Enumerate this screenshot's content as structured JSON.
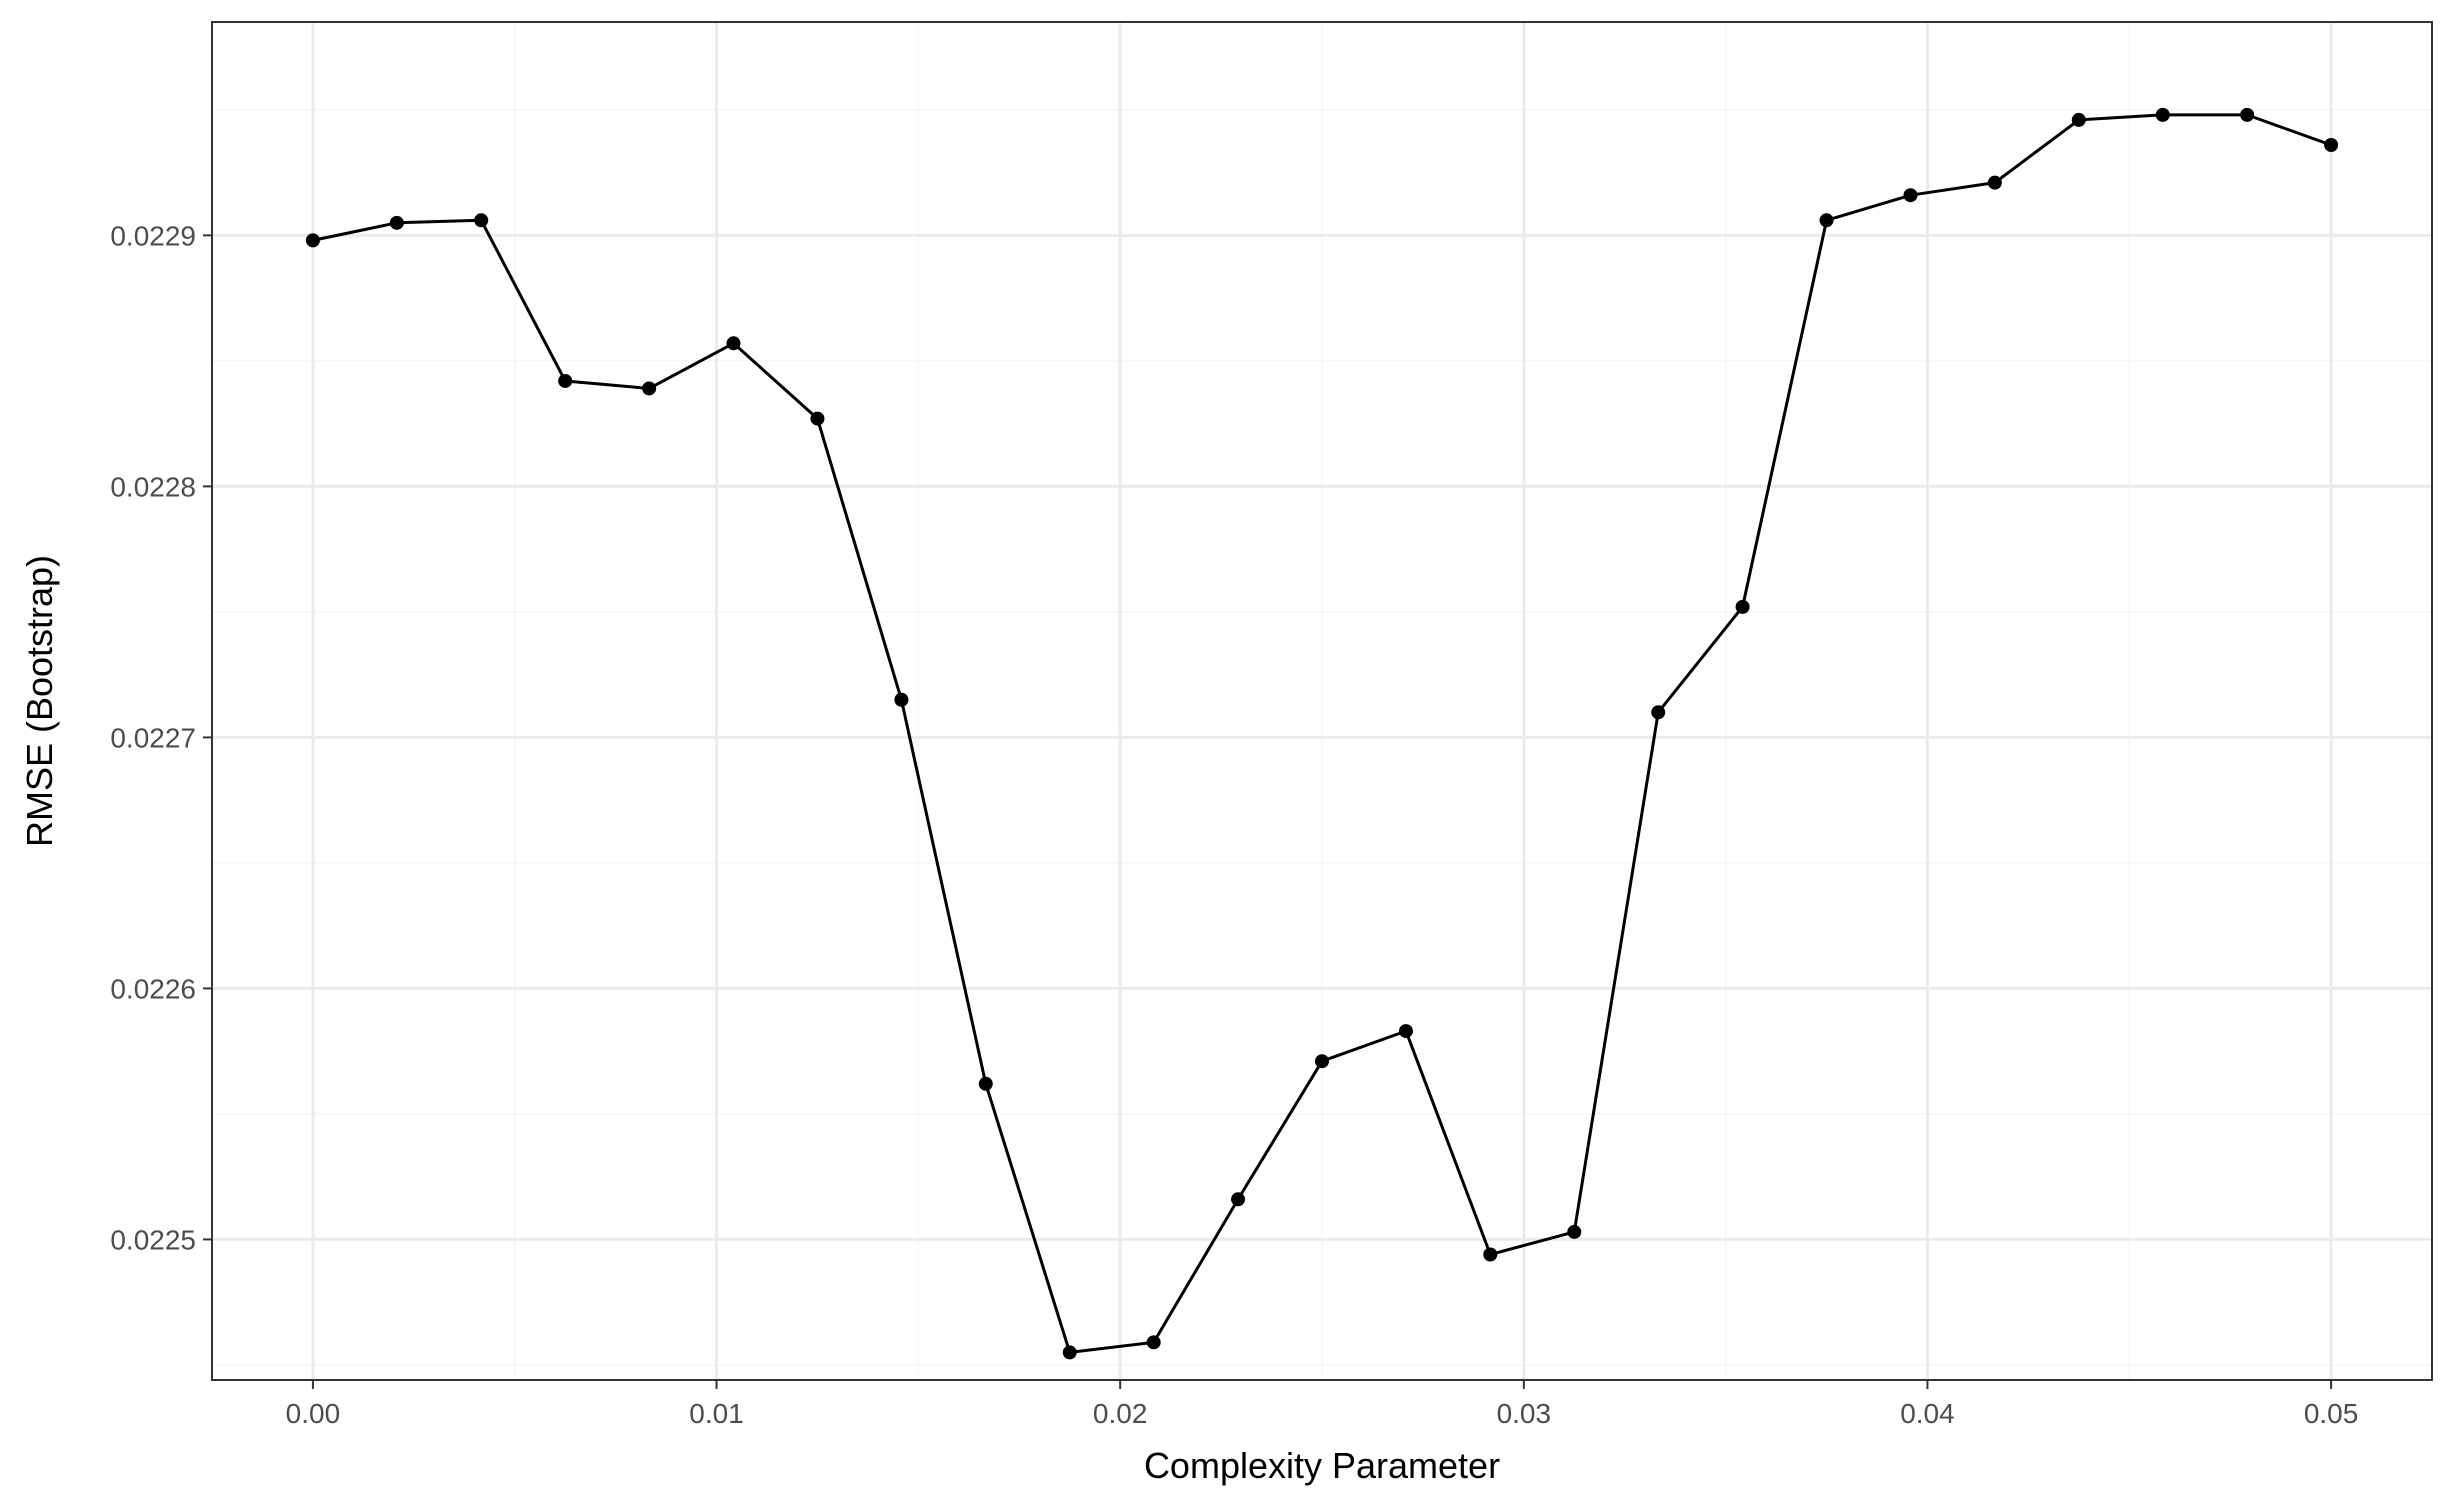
{
  "chart_data": {
    "type": "line",
    "title": "",
    "xlabel": "Complexity Parameter",
    "ylabel": "RMSE (Bootstrap)",
    "xlim": [
      -0.0025,
      0.0525
    ],
    "ylim": [
      0.022444,
      0.022985
    ],
    "x_ticks": [
      0.0,
      0.01,
      0.02,
      0.03,
      0.04,
      0.05
    ],
    "x_tick_labels": [
      "0.00",
      "0.01",
      "0.02",
      "0.03",
      "0.04",
      "0.05"
    ],
    "y_ticks": [
      0.0225,
      0.0226,
      0.0227,
      0.0228,
      0.0229
    ],
    "y_tick_labels": [
      "0.0225",
      "0.0226",
      "0.0227",
      "0.0228",
      "0.0229"
    ],
    "grid": true,
    "legend": "none",
    "theme": "bw",
    "colors": {
      "line": "#000000",
      "point": "#000000",
      "grid_major": "#ebebeb",
      "grid_minor": "#f5f5f5",
      "panel_border": "#333333",
      "tick_label": "#4d4d4d",
      "background": "#ffffff"
    },
    "series": [
      {
        "x": [
          0.0,
          0.00208,
          0.00417,
          0.00625,
          0.00833,
          0.01042,
          0.0125,
          0.01458,
          0.01667,
          0.01875,
          0.02083,
          0.02292,
          0.025,
          0.02708,
          0.02917,
          0.03125,
          0.03333,
          0.03542,
          0.0375,
          0.03958,
          0.04167,
          0.04375,
          0.04583,
          0.04792,
          0.05
        ],
        "y": [
          0.022898,
          0.022905,
          0.022906,
          0.022842,
          0.022839,
          0.022857,
          0.022827,
          0.022715,
          0.022562,
          0.022455,
          0.022459,
          0.022516,
          0.022571,
          0.022583,
          0.022494,
          0.022503,
          0.02271,
          0.022752,
          0.022906,
          0.022916,
          0.022921,
          0.022946,
          0.022948,
          0.022948,
          0.022936
        ]
      }
    ]
  }
}
